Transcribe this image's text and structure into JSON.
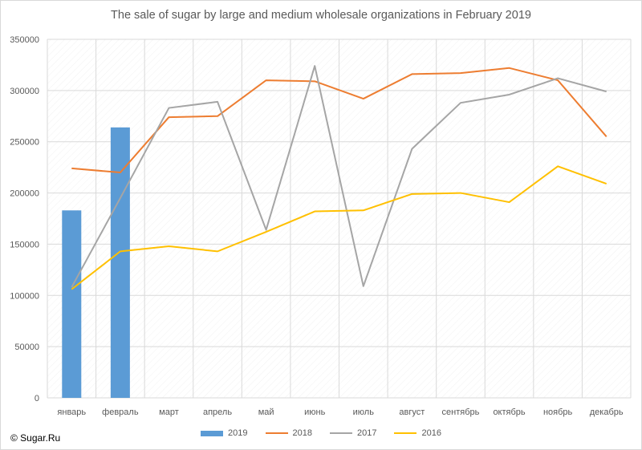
{
  "chart_data": {
    "type": "bar+line",
    "title": "The sale of sugar by large and medium wholesale organizations in February 2019",
    "categories": [
      "январь",
      "февраль",
      "март",
      "апрель",
      "май",
      "июнь",
      "июль",
      "август",
      "сентябрь",
      "октябрь",
      "ноябрь",
      "декабрь"
    ],
    "ylim": [
      0,
      350000
    ],
    "yticks": [
      0,
      50000,
      100000,
      150000,
      200000,
      250000,
      300000,
      350000
    ],
    "grid": true,
    "legend_position": "bottom",
    "series": [
      {
        "name": "2019",
        "kind": "bar",
        "color": "#5b9bd5",
        "values": [
          183000,
          264000,
          null,
          null,
          null,
          null,
          null,
          null,
          null,
          null,
          null,
          null
        ]
      },
      {
        "name": "2018",
        "kind": "line",
        "color": "#ed7d31",
        "values": [
          224000,
          220000,
          274000,
          275000,
          310000,
          309000,
          292000,
          316000,
          317000,
          322000,
          310000,
          255000
        ]
      },
      {
        "name": "2017",
        "kind": "line",
        "color": "#a5a5a5",
        "values": [
          108000,
          195000,
          283000,
          289000,
          164000,
          324000,
          109000,
          243000,
          288000,
          296000,
          312000,
          299000
        ]
      },
      {
        "name": "2016",
        "kind": "line",
        "color": "#ffc000",
        "values": [
          106000,
          143000,
          148000,
          143000,
          162000,
          182000,
          183000,
          199000,
          200000,
          191000,
          226000,
          209000
        ]
      }
    ]
  },
  "copyright": "© Sugar.Ru"
}
